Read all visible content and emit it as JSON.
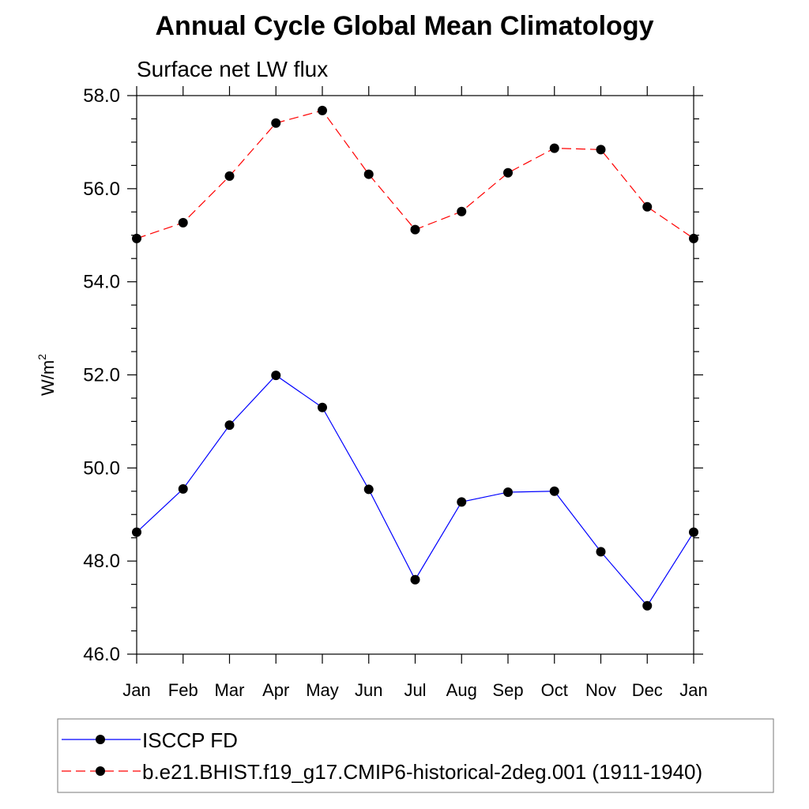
{
  "title": "Annual Cycle Global Mean Climatology",
  "subtitle": "Surface net LW flux",
  "chart_data": {
    "type": "line",
    "categories": [
      "Jan",
      "Feb",
      "Mar",
      "Apr",
      "May",
      "Jun",
      "Jul",
      "Aug",
      "Sep",
      "Oct",
      "Nov",
      "Dec",
      "Jan"
    ],
    "ylabel": "W/m",
    "ylabel_superscript": "2",
    "ylim": [
      46.0,
      58.0
    ],
    "yticks": [
      "46.0",
      "48.0",
      "50.0",
      "52.0",
      "54.0",
      "56.0",
      "58.0"
    ],
    "grid": false,
    "legend_position": "bottom",
    "series": [
      {
        "name": "ISCCP FD",
        "color": "#0000ff",
        "line_style": "solid",
        "marker": "filled-circle",
        "values": [
          48.62,
          49.55,
          50.92,
          51.99,
          51.3,
          49.54,
          47.6,
          49.27,
          49.48,
          49.5,
          48.2,
          47.04,
          48.62
        ]
      },
      {
        "name": "b.e21.BHIST.f19_g17.CMIP6-historical-2deg.001 (1911-1940)",
        "color": "#ff0000",
        "line_style": "dashed",
        "marker": "filled-circle",
        "values": [
          54.93,
          55.27,
          56.27,
          57.41,
          57.68,
          56.31,
          55.12,
          55.51,
          56.34,
          56.87,
          56.84,
          55.61,
          54.93
        ]
      }
    ]
  }
}
